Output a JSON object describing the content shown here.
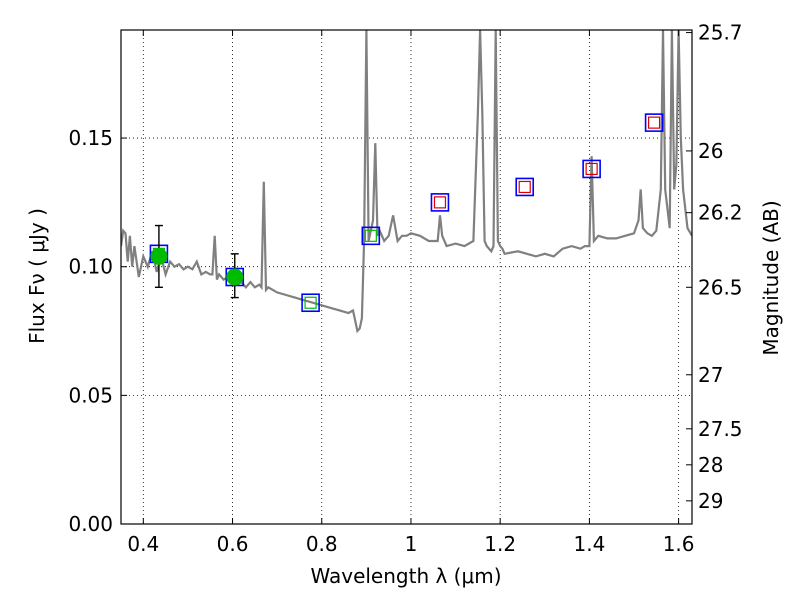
{
  "chart_data": {
    "type": "line",
    "xlabel": "Wavelength  λ (μm)",
    "ylabel": "Flux  Fν  ( μJy )",
    "y2label": "Magnitude (AB)",
    "xlim": [
      0.35,
      1.63
    ],
    "ylim": [
      0.0,
      0.192
    ],
    "grid": true,
    "x_ticks": [
      0.4,
      0.6,
      0.8,
      1.0,
      1.2,
      1.4,
      1.6
    ],
    "x_tick_labels": [
      "0.4",
      "0.6",
      "0.8",
      "1",
      "1.2",
      "1.4",
      "1.6"
    ],
    "y_ticks": [
      0.0,
      0.05,
      0.1,
      0.15
    ],
    "y_tick_labels": [
      "0.00",
      "0.05",
      "0.10",
      "0.15"
    ],
    "y2_ticks": [
      {
        "label": "25.7",
        "flux": 0.191
      },
      {
        "label": "26",
        "flux": 0.145
      },
      {
        "label": "26.2",
        "flux": 0.121
      },
      {
        "label": "26.5",
        "flux": 0.092
      },
      {
        "label": "27",
        "flux": 0.058
      },
      {
        "label": "27.5",
        "flux": 0.037
      },
      {
        "label": "28",
        "flux": 0.023
      },
      {
        "label": "29",
        "flux": 0.009
      }
    ],
    "colors": {
      "spectrum": "#808080",
      "obs": "#00bb00",
      "model": "#0000ff",
      "model_inner": "#00bb00",
      "model_nir": "#dd0000"
    },
    "spectrum": {
      "x": [
        0.35,
        0.355,
        0.36,
        0.365,
        0.37,
        0.375,
        0.38,
        0.39,
        0.4,
        0.41,
        0.42,
        0.43,
        0.44,
        0.45,
        0.46,
        0.47,
        0.48,
        0.49,
        0.5,
        0.51,
        0.52,
        0.53,
        0.54,
        0.55,
        0.555,
        0.56,
        0.565,
        0.57,
        0.58,
        0.59,
        0.6,
        0.61,
        0.62,
        0.63,
        0.64,
        0.65,
        0.66,
        0.665,
        0.67,
        0.675,
        0.68,
        0.7,
        0.72,
        0.74,
        0.76,
        0.78,
        0.8,
        0.82,
        0.84,
        0.86,
        0.87,
        0.88,
        0.885,
        0.89,
        0.895,
        0.9,
        0.905,
        0.91,
        0.915,
        0.92,
        0.925,
        0.93,
        0.94,
        0.95,
        0.96,
        0.97,
        0.98,
        0.99,
        1.0,
        1.02,
        1.04,
        1.06,
        1.065,
        1.07,
        1.08,
        1.1,
        1.12,
        1.14,
        1.15,
        1.155,
        1.16,
        1.165,
        1.17,
        1.18,
        1.185,
        1.19,
        1.195,
        1.2,
        1.205,
        1.21,
        1.24,
        1.26,
        1.28,
        1.3,
        1.32,
        1.34,
        1.36,
        1.38,
        1.39,
        1.4,
        1.405,
        1.41,
        1.42,
        1.44,
        1.46,
        1.48,
        1.5,
        1.51,
        1.515,
        1.52,
        1.53,
        1.54,
        1.55,
        1.56,
        1.565,
        1.57,
        1.58,
        1.585,
        1.59,
        1.595,
        1.6,
        1.605,
        1.61,
        1.62,
        1.63
      ],
      "y": [
        0.108,
        0.114,
        0.113,
        0.102,
        0.112,
        0.1,
        0.108,
        0.096,
        0.104,
        0.1,
        0.106,
        0.098,
        0.104,
        0.097,
        0.102,
        0.1,
        0.101,
        0.099,
        0.1,
        0.099,
        0.102,
        0.097,
        0.098,
        0.097,
        0.097,
        0.112,
        0.095,
        0.097,
        0.095,
        0.096,
        0.095,
        0.093,
        0.094,
        0.092,
        0.094,
        0.092,
        0.093,
        0.092,
        0.133,
        0.091,
        0.092,
        0.09,
        0.089,
        0.088,
        0.087,
        0.086,
        0.085,
        0.084,
        0.083,
        0.082,
        0.083,
        0.075,
        0.076,
        0.08,
        0.11,
        0.192,
        0.11,
        0.114,
        0.118,
        0.148,
        0.112,
        0.114,
        0.11,
        0.112,
        0.12,
        0.11,
        0.112,
        0.112,
        0.113,
        0.112,
        0.11,
        0.11,
        0.12,
        0.112,
        0.108,
        0.109,
        0.108,
        0.11,
        0.16,
        0.192,
        0.16,
        0.11,
        0.108,
        0.106,
        0.108,
        0.192,
        0.11,
        0.108,
        0.107,
        0.105,
        0.106,
        0.105,
        0.104,
        0.105,
        0.104,
        0.107,
        0.108,
        0.107,
        0.108,
        0.108,
        0.143,
        0.11,
        0.112,
        0.111,
        0.111,
        0.112,
        0.113,
        0.118,
        0.13,
        0.115,
        0.113,
        0.112,
        0.114,
        0.13,
        0.192,
        0.13,
        0.115,
        0.192,
        0.13,
        0.14,
        0.192,
        0.15,
        0.13,
        0.115,
        0.112
      ]
    },
    "observed_points": [
      {
        "x": 0.435,
        "y": 0.104,
        "yerr_low": 0.092,
        "yerr_high": 0.116
      },
      {
        "x": 0.605,
        "y": 0.096,
        "yerr_low": 0.088,
        "yerr_high": 0.105
      }
    ],
    "model_points": [
      {
        "x": 0.435,
        "y": 0.105,
        "inner": "green"
      },
      {
        "x": 0.605,
        "y": 0.096,
        "inner": "green"
      },
      {
        "x": 0.775,
        "y": 0.086,
        "inner": "green"
      },
      {
        "x": 0.91,
        "y": 0.112,
        "inner": "green"
      },
      {
        "x": 1.065,
        "y": 0.125,
        "inner": "red"
      },
      {
        "x": 1.255,
        "y": 0.131,
        "inner": "red"
      },
      {
        "x": 1.405,
        "y": 0.138,
        "inner": "red"
      },
      {
        "x": 1.545,
        "y": 0.156,
        "inner": "red"
      }
    ]
  }
}
